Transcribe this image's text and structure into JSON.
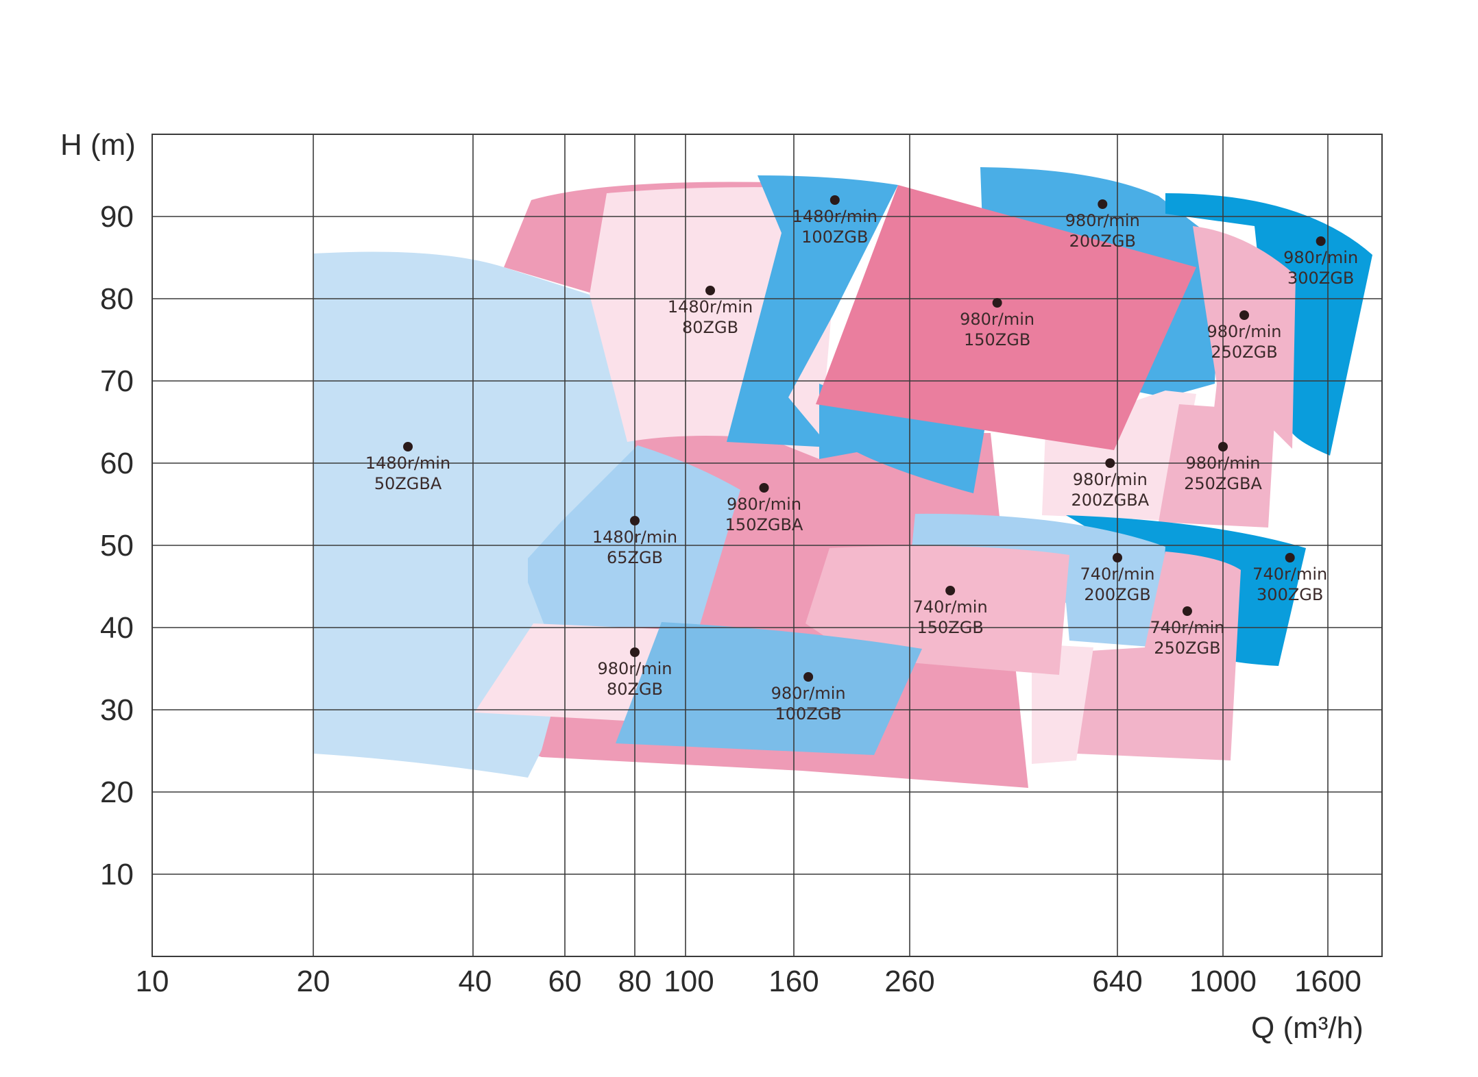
{
  "chart_data": {
    "type": "area",
    "title": "",
    "xlabel": "Q (m³/h)",
    "ylabel": "H (m)",
    "x_ticks": [
      "10",
      "20",
      "40",
      "60",
      "80",
      "100",
      "160",
      "260",
      "640",
      "1000",
      "1600"
    ],
    "y_ticks": [
      "10",
      "20",
      "30",
      "40",
      "50",
      "60",
      "70",
      "80",
      "90"
    ],
    "ylim": [
      0,
      100
    ],
    "grid": true,
    "regions": [
      {
        "speed": "1480r/min",
        "model": "50ZGBA",
        "point_x": 30,
        "point_y": 62,
        "color": "#c5e0f5"
      },
      {
        "speed": "980r/min",
        "model": "150ZGBA",
        "point_x": 140,
        "point_y": 57,
        "color": "#ee9bb6"
      },
      {
        "speed": "1480r/min",
        "model": "80ZGB",
        "point_x": 110,
        "point_y": 81,
        "color": "#fbe1ea"
      },
      {
        "speed": "1480r/min",
        "model": "100ZGB",
        "point_x": 190,
        "point_y": 92,
        "color": "#4aaee6"
      },
      {
        "speed": "980r/min",
        "model": "200ZGB",
        "point_x": 600,
        "point_y": 91.5,
        "color": "#4aaee6"
      },
      {
        "speed": "980r/min",
        "model": "300ZGB",
        "point_x": 1550,
        "point_y": 87,
        "color": "#0a9ddc"
      },
      {
        "speed": "980r/min",
        "model": "250ZGB",
        "point_x": 1100,
        "point_y": 78,
        "color": "#f2b4c9"
      },
      {
        "speed": "980r/min",
        "model": "150ZGB",
        "point_x": 380,
        "point_y": 79.5,
        "color": "#ea7e9e"
      },
      {
        "speed": "980r/min",
        "model": "200ZGBA",
        "point_x": 620,
        "point_y": 60,
        "color": "#fbe1ea"
      },
      {
        "speed": "980r/min",
        "model": "250ZGBA",
        "point_x": 1000,
        "point_y": 62,
        "color": "#f2b4c9"
      },
      {
        "speed": "1480r/min",
        "model": "65ZGB",
        "point_x": 80,
        "point_y": 53,
        "color": "#a7d1f2"
      },
      {
        "speed": "740r/min",
        "model": "300ZGB",
        "point_x": 1350,
        "point_y": 48.5,
        "color": "#0a9ddc"
      },
      {
        "speed": "740r/min",
        "model": "200ZGB",
        "point_x": 640,
        "point_y": 48.5,
        "color": "#a7d1f2"
      },
      {
        "speed": "740r/min",
        "model": "250ZGB",
        "point_x": 860,
        "point_y": 42,
        "color": "#f2b4c9"
      },
      {
        "speed": "740r/min",
        "model": "150ZGB",
        "point_x": 310,
        "point_y": 44.5,
        "color": "#f4b9cc"
      },
      {
        "speed": "980r/min",
        "model": "80ZGB",
        "point_x": 80,
        "point_y": 37,
        "color": "#fbe1ea"
      },
      {
        "speed": "980r/min",
        "model": "100ZGB",
        "point_x": 170,
        "point_y": 34,
        "color": "#7bbde9"
      }
    ]
  }
}
